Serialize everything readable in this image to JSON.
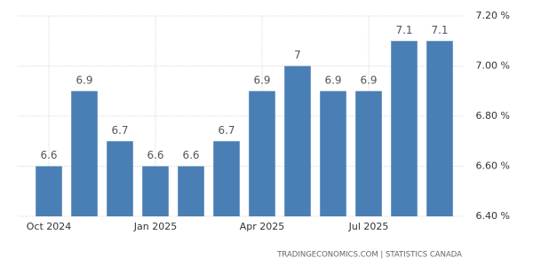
{
  "chart_data": {
    "type": "bar",
    "categories": [
      "Oct 2024",
      null,
      null,
      "Jan 2025",
      null,
      null,
      "Apr 2025",
      null,
      null,
      "Jul 2025",
      null,
      null
    ],
    "values": [
      6.6,
      6.9,
      6.7,
      6.6,
      6.6,
      6.7,
      6.9,
      7,
      6.9,
      6.9,
      7.1,
      7.1
    ],
    "color": "#4a7fb5",
    "ylim": [
      6.4,
      7.2
    ],
    "yticks": [
      {
        "value": 6.4,
        "label": "6.40 %"
      },
      {
        "value": 6.6,
        "label": "6.60 %"
      },
      {
        "value": 6.8,
        "label": "6.80 %"
      },
      {
        "value": 7.0,
        "label": "7.00 %"
      },
      {
        "value": 7.2,
        "label": "7.20 %"
      }
    ],
    "grid": true,
    "source": "TRADINGECONOMICS.COM  |  STATISTICS CANADA"
  }
}
